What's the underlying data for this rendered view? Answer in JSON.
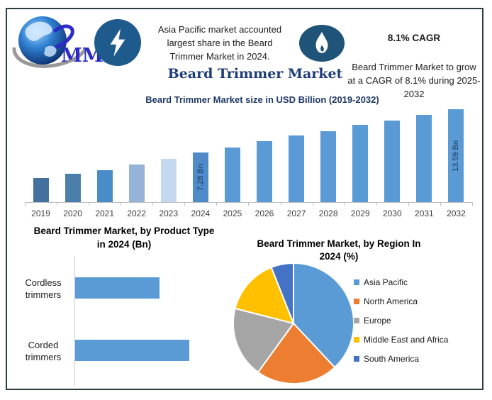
{
  "header": {
    "logo": {
      "text": "MMR"
    },
    "highlight_left": {
      "icon": "lightning-bolt",
      "lines": [
        "Asia Pacific market accounted",
        "largest share in the Beard",
        "Trimmer Market in 2024."
      ]
    },
    "highlight_right": {
      "icon": "flame",
      "title": "8.1% CAGR",
      "lines": [
        "Beard Trimmer Market to grow",
        "at a CAGR of 8.1% during 2025-",
        "2032"
      ]
    }
  },
  "main_title": "Beard Trimmer Market",
  "colors": {
    "frame_border": "#2B3B40",
    "title_navy": "#1F3864",
    "main_title_blue": "#1E3C78",
    "lightning_circle": "#1E5A8B",
    "flame_circle": "#1F5377",
    "primary_bar_blue": "#5B9BD5"
  },
  "chart_data": [
    {
      "type": "bar",
      "title": "Beard Trimmer Market size in USD Billion (2019-2032)",
      "ylabel": "USD Billion",
      "categories": [
        "2019",
        "2020",
        "2021",
        "2022",
        "2023",
        "2024",
        "2025",
        "2026",
        "2027",
        "2028",
        "2029",
        "2030",
        "2031",
        "2032"
      ],
      "values": [
        3.5,
        4.1,
        4.7,
        5.5,
        6.3,
        7.28,
        8.0,
        8.9,
        9.7,
        10.4,
        11.3,
        11.9,
        12.8,
        13.59
      ],
      "data_labels": {
        "2024": "7.28 Bn",
        "2032": "13.59 Bn"
      },
      "bar_colors": [
        "#41719C",
        "#4A7FAC",
        "#4A8CC7",
        "#95B3D7",
        "#C5D9EE",
        "#4E8BC8",
        "#5B9BD5",
        "#5B9BD5",
        "#5B9BD5",
        "#5B9BD5",
        "#5B9BD5",
        "#5B9BD5",
        "#5B9BD5",
        "#5B9BD5"
      ],
      "ylim": [
        0,
        14
      ],
      "grid": false,
      "values_note": "only 2024 and 2032 carry data labels; other values estimated from bar heights"
    },
    {
      "type": "bar",
      "orientation": "horizontal",
      "title": [
        "Beard Trimmer Market, by Product Type",
        "in 2024 (Bn)"
      ],
      "categories": [
        "Cordless trimmers",
        "Corded trimmers"
      ],
      "values": [
        3.1,
        4.2
      ],
      "bar_color": "#5B9BD5",
      "grid": false,
      "values_note": "no data labels shown; values estimated from bar lengths"
    },
    {
      "type": "pie",
      "title": [
        "Beard Trimmer Market, by Region In",
        "2024 (%)"
      ],
      "labels": [
        "Asia Pacific",
        "North America",
        "Europe",
        "Middle East and Africa",
        "South America"
      ],
      "values": [
        38,
        22,
        19,
        15,
        6
      ],
      "colors": [
        "#5B9BD5",
        "#ED7D31",
        "#A5A5A5",
        "#FFC000",
        "#4472C4"
      ],
      "legend_position": "right",
      "start_angle": 0,
      "values_note": "percentages not printed on chart; shares estimated from slice angles"
    }
  ]
}
